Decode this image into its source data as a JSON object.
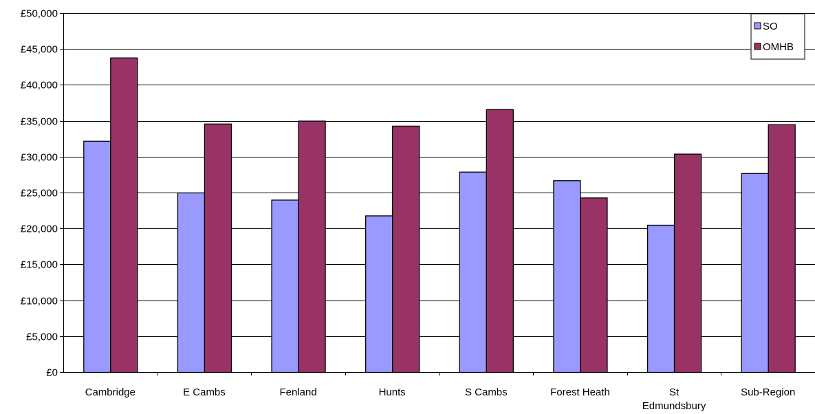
{
  "chart_data": {
    "type": "bar",
    "title": "",
    "xlabel": "",
    "ylabel": "",
    "ylim": [
      0,
      50000
    ],
    "y_tick_step": 5000,
    "y_tick_labels": [
      "£0",
      "£5,000",
      "£10,000",
      "£15,000",
      "£20,000",
      "£25,000",
      "£30,000",
      "£35,000",
      "£40,000",
      "£45,000",
      "£50,000"
    ],
    "categories": [
      "Cambridge",
      "E Cambs",
      "Fenland",
      "Hunts",
      "S Cambs",
      "Forest Heath",
      "St Edmundsbury",
      "Sub-Region"
    ],
    "category_lines": [
      [
        "Cambridge"
      ],
      [
        "E Cambs"
      ],
      [
        "Fenland"
      ],
      [
        "Hunts"
      ],
      [
        "S Cambs"
      ],
      [
        "Forest Heath"
      ],
      [
        "St",
        "Edmundsbury"
      ],
      [
        "Sub-Region"
      ]
    ],
    "series": [
      {
        "name": "SO",
        "color": "#9999ff",
        "values": [
          32200,
          25000,
          24000,
          21800,
          27900,
          26700,
          20500,
          27700
        ]
      },
      {
        "name": "OMHB",
        "color": "#993366",
        "values": [
          43800,
          34600,
          35000,
          34300,
          36600,
          24300,
          30400,
          34500
        ]
      }
    ],
    "grid": true,
    "legend_position": "top-right"
  }
}
